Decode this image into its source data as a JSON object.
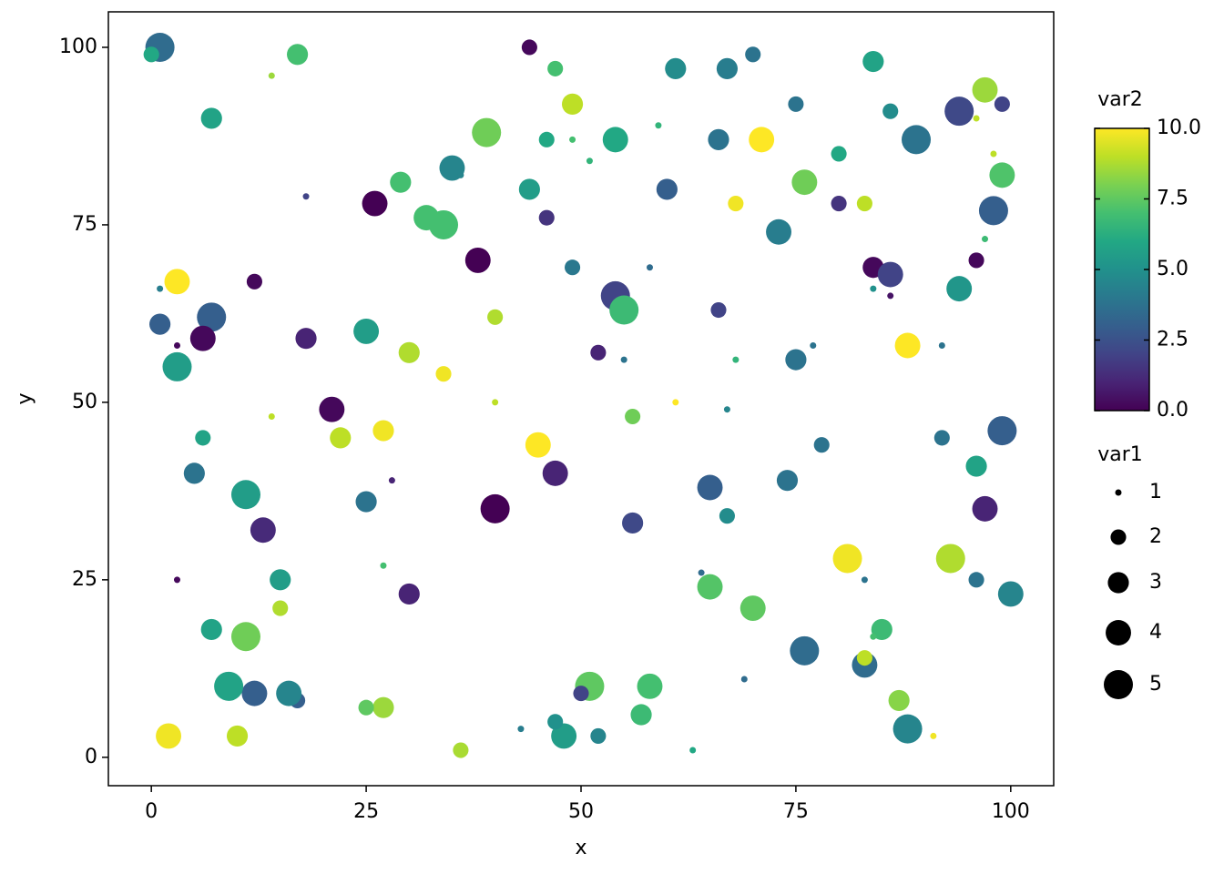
{
  "chart_data": {
    "type": "scatter",
    "x_label": "x",
    "y_label": "y",
    "x": [
      1,
      0,
      7,
      14,
      17,
      18,
      26,
      29,
      32,
      34,
      35,
      36,
      39,
      44,
      47,
      49,
      46,
      49,
      51,
      54,
      44,
      46,
      38,
      49,
      54,
      55,
      58,
      61,
      59,
      60,
      66,
      67,
      70,
      71,
      68,
      75,
      76,
      73,
      80,
      84,
      86,
      89,
      80,
      83,
      94,
      97,
      96,
      99,
      98,
      99,
      98,
      97,
      96,
      84,
      86,
      84,
      86,
      94,
      88,
      92,
      92,
      99,
      96,
      97,
      93,
      96,
      100,
      85,
      84,
      83,
      83,
      87,
      88,
      91,
      81,
      83,
      76,
      70,
      65,
      64,
      69,
      63,
      58,
      57,
      52,
      51,
      50,
      48,
      47,
      43,
      36,
      27,
      25,
      17,
      16,
      12,
      9,
      10,
      2,
      7,
      11,
      15,
      15,
      3,
      30,
      27,
      13,
      11,
      5,
      6,
      25,
      28,
      22,
      27,
      21,
      14,
      40,
      40,
      45,
      47,
      56,
      56,
      61,
      67,
      67,
      65,
      74,
      78,
      75,
      77,
      68,
      66,
      55,
      52,
      40,
      34,
      30,
      25,
      18,
      12,
      3,
      1,
      7,
      1,
      3,
      6,
      3
    ],
    "y": [
      100,
      99,
      90,
      96,
      99,
      79,
      78,
      81,
      76,
      75,
      83,
      82,
      88,
      100,
      97,
      92,
      87,
      87,
      84,
      87,
      80,
      76,
      70,
      69,
      65,
      63,
      69,
      97,
      89,
      80,
      87,
      97,
      99,
      87,
      78,
      92,
      81,
      74,
      85,
      98,
      91,
      87,
      78,
      78,
      91,
      94,
      90,
      92,
      85,
      82,
      77,
      73,
      70,
      69,
      68,
      66,
      65,
      66,
      58,
      58,
      45,
      46,
      41,
      35,
      28,
      25,
      23,
      18,
      17,
      13,
      14,
      8,
      4,
      3,
      28,
      25,
      15,
      21,
      24,
      26,
      11,
      1,
      10,
      6,
      3,
      10,
      9,
      3,
      5,
      4,
      1,
      7,
      7,
      8,
      9,
      9,
      10,
      3,
      3,
      18,
      17,
      21,
      25,
      25,
      23,
      27,
      32,
      37,
      40,
      45,
      36,
      39,
      45,
      46,
      49,
      48,
      35,
      50,
      44,
      40,
      33,
      48,
      50,
      49,
      34,
      38,
      39,
      44,
      56,
      58,
      56,
      63,
      56,
      57,
      62,
      54,
      57,
      60,
      59,
      67,
      67,
      66,
      62,
      61,
      58,
      59,
      55
    ],
    "size": [
      5,
      2,
      3,
      1,
      3,
      1,
      4,
      3,
      4,
      5,
      4,
      1,
      5,
      2,
      2,
      3,
      2,
      1,
      1,
      4,
      3,
      2,
      4,
      2,
      5,
      5,
      1,
      3,
      1,
      3,
      3,
      3,
      2,
      4,
      2,
      2,
      4,
      4,
      2,
      3,
      2,
      5,
      2,
      2,
      5,
      4,
      1,
      2,
      1,
      4,
      5,
      1,
      2,
      3,
      4,
      1,
      1,
      4,
      4,
      1,
      2,
      5,
      3,
      4,
      5,
      2,
      4,
      3,
      1,
      4,
      2,
      3,
      5,
      1,
      5,
      1,
      5,
      4,
      4,
      1,
      1,
      1,
      4,
      3,
      2,
      5,
      2,
      4,
      2,
      1,
      2,
      3,
      2,
      2,
      4,
      4,
      5,
      3,
      4,
      3,
      5,
      2,
      3,
      1,
      3,
      1,
      4,
      5,
      3,
      2,
      3,
      1,
      3,
      3,
      4,
      1,
      5,
      1,
      4,
      4,
      3,
      2,
      1,
      1,
      2,
      4,
      3,
      2,
      3,
      1,
      1,
      2,
      1,
      2,
      2,
      2,
      3,
      4,
      3,
      2,
      4,
      1,
      5,
      3,
      1,
      4,
      5
    ],
    "color": [
      3.5,
      6,
      5.8,
      8.5,
      7,
      2,
      0,
      7,
      7,
      7,
      4.5,
      4.5,
      7.8,
      0.2,
      7,
      9,
      6,
      7,
      6.5,
      6,
      5.5,
      1.5,
      0,
      4,
      2,
      6.8,
      3.5,
      4.8,
      6.5,
      3,
      3.8,
      4.2,
      3.8,
      10,
      9.8,
      3.8,
      7.8,
      4.2,
      6,
      5.8,
      4.8,
      3.8,
      1.5,
      9,
      2.2,
      8.5,
      9,
      2,
      9,
      7.2,
      3,
      6.8,
      0.2,
      0.2,
      2,
      5,
      0.5,
      5.2,
      10,
      3.8,
      3.8,
      3,
      5.8,
      1,
      8.8,
      3.8,
      4.5,
      6.8,
      7,
      3.5,
      9,
      8.2,
      4.5,
      9.8,
      9.8,
      3.8,
      3.5,
      7.5,
      7.3,
      3.5,
      3.5,
      6,
      7,
      6.8,
      4.5,
      7.5,
      2,
      5.5,
      5,
      4.2,
      8.7,
      8.5,
      7.5,
      3,
      4.5,
      3,
      5.8,
      9,
      9.8,
      5.8,
      7.8,
      8.8,
      5.5,
      0.2,
      1,
      7,
      1.2,
      5.5,
      3.8,
      5.8,
      3.8,
      1,
      9,
      9.8,
      0.2,
      9,
      0,
      9,
      10,
      1,
      2.2,
      7.8,
      10,
      4.5,
      4.8,
      3,
      3.8,
      3.8,
      3.8,
      3.8,
      6.5,
      2,
      3.8,
      1,
      8.8,
      9.8,
      8.8,
      5.5,
      1,
      0.2,
      10,
      4.2,
      3,
      3,
      0.2,
      0.2,
      5.5
    ],
    "xlim": [
      -5,
      105
    ],
    "ylim": [
      -4,
      105
    ],
    "xticks": [
      0,
      25,
      50,
      75,
      100
    ],
    "yticks": [
      0,
      25,
      50,
      75,
      100
    ],
    "color_label": "var2",
    "clim": [
      0,
      10
    ],
    "colorbar_ticks": [
      {
        "value": 0,
        "label": "0.0"
      },
      {
        "value": 2.5,
        "label": "2.5"
      },
      {
        "value": 5,
        "label": "5.0"
      },
      {
        "value": 7.5,
        "label": "7.5"
      },
      {
        "value": 10,
        "label": "10.0"
      }
    ],
    "colormap": [
      "#440154",
      "#482475",
      "#414487",
      "#355f8d",
      "#2a788e",
      "#21918c",
      "#22a884",
      "#44bf70",
      "#7ad151",
      "#bddf26",
      "#fde725"
    ],
    "size_label": "var1",
    "size_legend": [
      1,
      2,
      3,
      4,
      5
    ]
  }
}
